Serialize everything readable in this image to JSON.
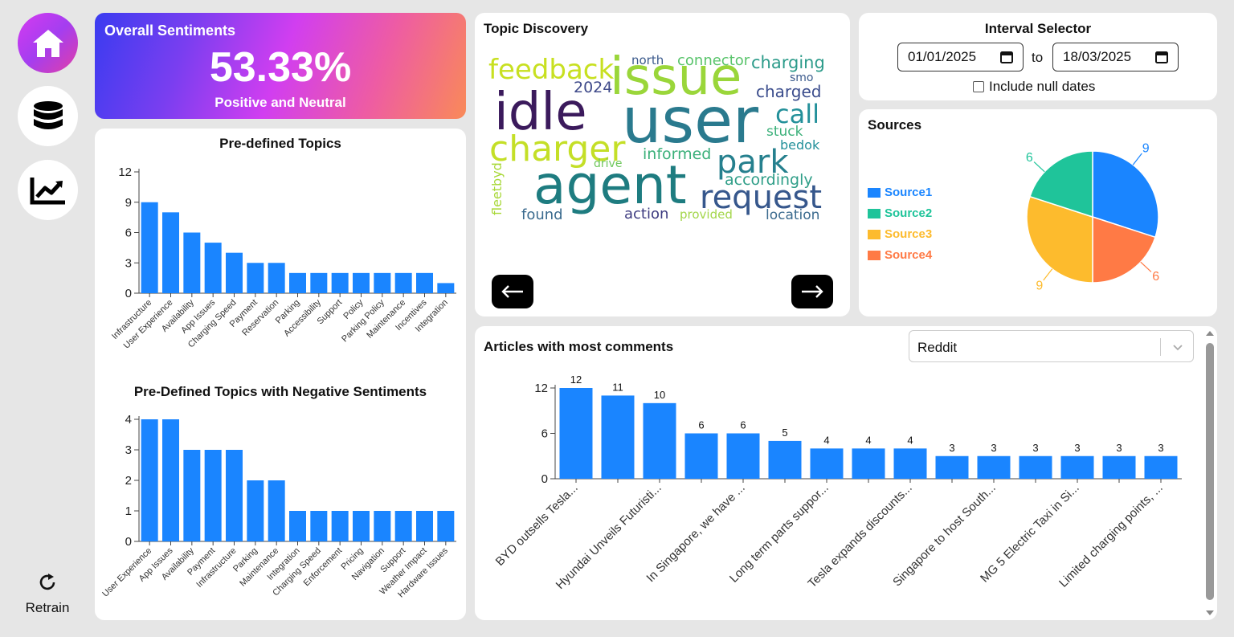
{
  "sidebar": {
    "items": [
      {
        "name": "home",
        "icon": "home-icon"
      },
      {
        "name": "database",
        "icon": "database-icon"
      },
      {
        "name": "analytics",
        "icon": "chart-line-icon"
      }
    ],
    "retrain_label": "Retrain"
  },
  "overall": {
    "title": "Overall Sentiments",
    "value": "53.33%",
    "subtitle": "Positive and Neutral"
  },
  "topic_discovery": {
    "title": "Topic Discovery",
    "words": [
      {
        "text": "feedback",
        "color": "#c8e021"
      },
      {
        "text": "issue",
        "color": "#9ad63a"
      },
      {
        "text": "north",
        "color": "#3b5a8c"
      },
      {
        "text": "connector",
        "color": "#59c46b"
      },
      {
        "text": "charging",
        "color": "#2c9b8a"
      },
      {
        "text": "2024",
        "color": "#3f4a8a"
      },
      {
        "text": "smo",
        "color": "#3b5a8c"
      },
      {
        "text": "idle",
        "color": "#3b1a5c"
      },
      {
        "text": "user",
        "color": "#2a7a8e"
      },
      {
        "text": "charged",
        "color": "#3a4c8c"
      },
      {
        "text": "call",
        "color": "#23909a"
      },
      {
        "text": "stuck",
        "color": "#3bb07a"
      },
      {
        "text": "charger",
        "color": "#c4df27"
      },
      {
        "text": "bedok",
        "color": "#23909a"
      },
      {
        "text": "informed",
        "color": "#3bb07a"
      },
      {
        "text": "park",
        "color": "#26808e"
      },
      {
        "text": "fleetbyd",
        "color": "#a8d838"
      },
      {
        "text": "drive",
        "color": "#6ec75c"
      },
      {
        "text": "accordingly",
        "color": "#2f9e88"
      },
      {
        "text": "agent",
        "color": "#1e7c80"
      },
      {
        "text": "request",
        "color": "#36578c"
      },
      {
        "text": "found",
        "color": "#3a6a8e"
      },
      {
        "text": "action",
        "color": "#3d3b80"
      },
      {
        "text": "provided",
        "color": "#a3d64a"
      },
      {
        "text": "location",
        "color": "#3a6a8e"
      }
    ]
  },
  "interval": {
    "title": "Interval Selector",
    "from": "01/01/2025",
    "to_label": "to",
    "to": "18/03/2025",
    "include_null_label": "Include null dates"
  },
  "sources": {
    "title": "Sources",
    "legend": [
      {
        "label": "Source1",
        "color": "#1a85ff"
      },
      {
        "label": "Source2",
        "color": "#1fc49a"
      },
      {
        "label": "Source3",
        "color": "#fdbb2d"
      },
      {
        "label": "Source4",
        "color": "#ff7a45"
      }
    ]
  },
  "articles": {
    "title": "Articles with most comments",
    "select_value": "Reddit"
  },
  "chart_data": [
    {
      "id": "predefined",
      "type": "bar",
      "title": "Pre-defined Topics",
      "categories": [
        "Infrastructure",
        "User Experience",
        "Availability",
        "App Issues",
        "Charging Speed",
        "Payment",
        "Reservation",
        "Parking",
        "Accessibility",
        "Support",
        "Policy",
        "Parking Policy",
        "Maintenance",
        "Incentives",
        "Integration"
      ],
      "values": [
        9,
        8,
        6,
        5,
        4,
        3,
        3,
        2,
        2,
        2,
        2,
        2,
        2,
        2,
        1
      ],
      "yticks": [
        0,
        3,
        6,
        9,
        12
      ],
      "ylim": [
        0,
        12
      ],
      "color": "#1a85ff"
    },
    {
      "id": "negative",
      "type": "bar",
      "title": "Pre-Defined Topics with Negative Sentiments",
      "categories": [
        "User Experience",
        "App Issues",
        "Availability",
        "Payment",
        "Infrastructure",
        "Parking",
        "Maintenance",
        "Integration",
        "Charging Speed",
        "Enforcement",
        "Pricing",
        "Navigation",
        "Support",
        "Weather Impact",
        "Hardware Issues"
      ],
      "values": [
        4,
        4,
        3,
        3,
        3,
        2,
        2,
        1,
        1,
        1,
        1,
        1,
        1,
        1,
        1
      ],
      "yticks": [
        0,
        1,
        2,
        3,
        4
      ],
      "ylim": [
        0,
        4
      ],
      "color": "#1a85ff"
    },
    {
      "id": "sources",
      "type": "pie",
      "title": "Sources",
      "labels": [
        "Source1",
        "Source4",
        "Source3",
        "Source2"
      ],
      "values": [
        9,
        6,
        9,
        6
      ],
      "colors": [
        "#1a85ff",
        "#ff7a45",
        "#fdbb2d",
        "#1fc49a"
      ]
    },
    {
      "id": "articles",
      "type": "bar",
      "title": "Articles with most comments",
      "categories": [
        "BYD outsells Tesla...",
        "",
        "Hyundai Unveils Futuristi...",
        "",
        "In Singapore, we have ...",
        "",
        "Long term parts suppor...",
        "",
        "Tesla expands discounts...",
        "",
        "Singapore to host South...",
        "",
        "MG 5 Electric Taxi in Si...",
        "",
        "Limited charging points, ..."
      ],
      "values": [
        12,
        11,
        10,
        6,
        6,
        5,
        4,
        4,
        4,
        3,
        3,
        3,
        3,
        3,
        3
      ],
      "yticks": [
        0,
        6,
        12
      ],
      "ylim": [
        0,
        12
      ],
      "color": "#1a85ff"
    }
  ]
}
